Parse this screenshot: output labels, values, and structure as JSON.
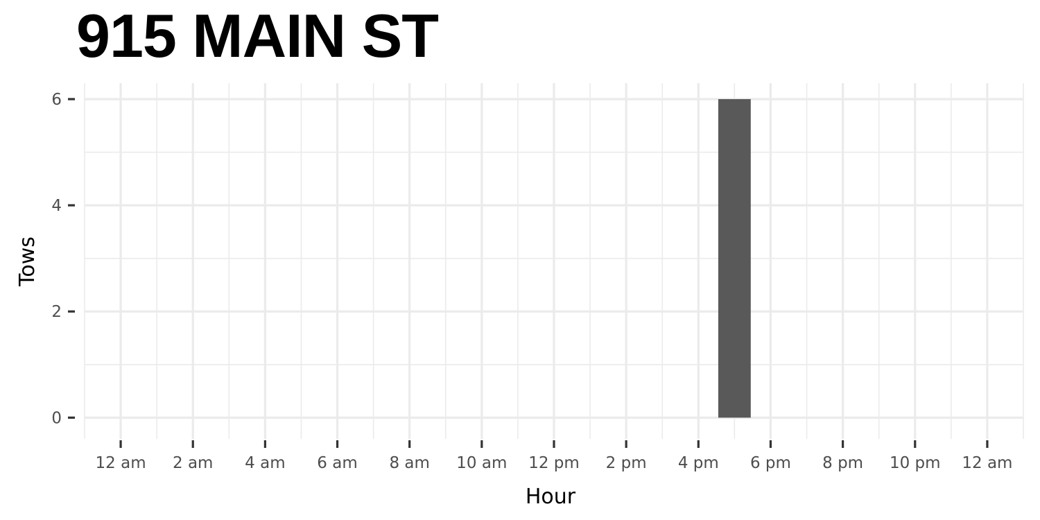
{
  "chart_data": {
    "type": "bar",
    "title": "915 MAIN ST",
    "xlabel": "Hour",
    "ylabel": "Tows",
    "x_unit": "hour",
    "bars": [
      {
        "x": 17,
        "value": 6
      }
    ],
    "bar_color": "#595959",
    "xlim": [
      -1,
      25
    ],
    "ylim": [
      -0.4,
      6.3
    ],
    "xticks": [
      {
        "value": 0,
        "label": "12 am"
      },
      {
        "value": 2,
        "label": "2 am"
      },
      {
        "value": 4,
        "label": "4 am"
      },
      {
        "value": 6,
        "label": "6 am"
      },
      {
        "value": 8,
        "label": "8 am"
      },
      {
        "value": 10,
        "label": "10 am"
      },
      {
        "value": 12,
        "label": "12 pm"
      },
      {
        "value": 14,
        "label": "2 pm"
      },
      {
        "value": 16,
        "label": "4 pm"
      },
      {
        "value": 18,
        "label": "6 pm"
      },
      {
        "value": 20,
        "label": "8 pm"
      },
      {
        "value": 22,
        "label": "10 pm"
      },
      {
        "value": 24,
        "label": "12 am"
      }
    ],
    "yticks": [
      {
        "value": 0,
        "label": "0"
      },
      {
        "value": 2,
        "label": "2"
      },
      {
        "value": 4,
        "label": "4"
      },
      {
        "value": 6,
        "label": "6"
      }
    ],
    "grid": true,
    "legend": "none"
  }
}
